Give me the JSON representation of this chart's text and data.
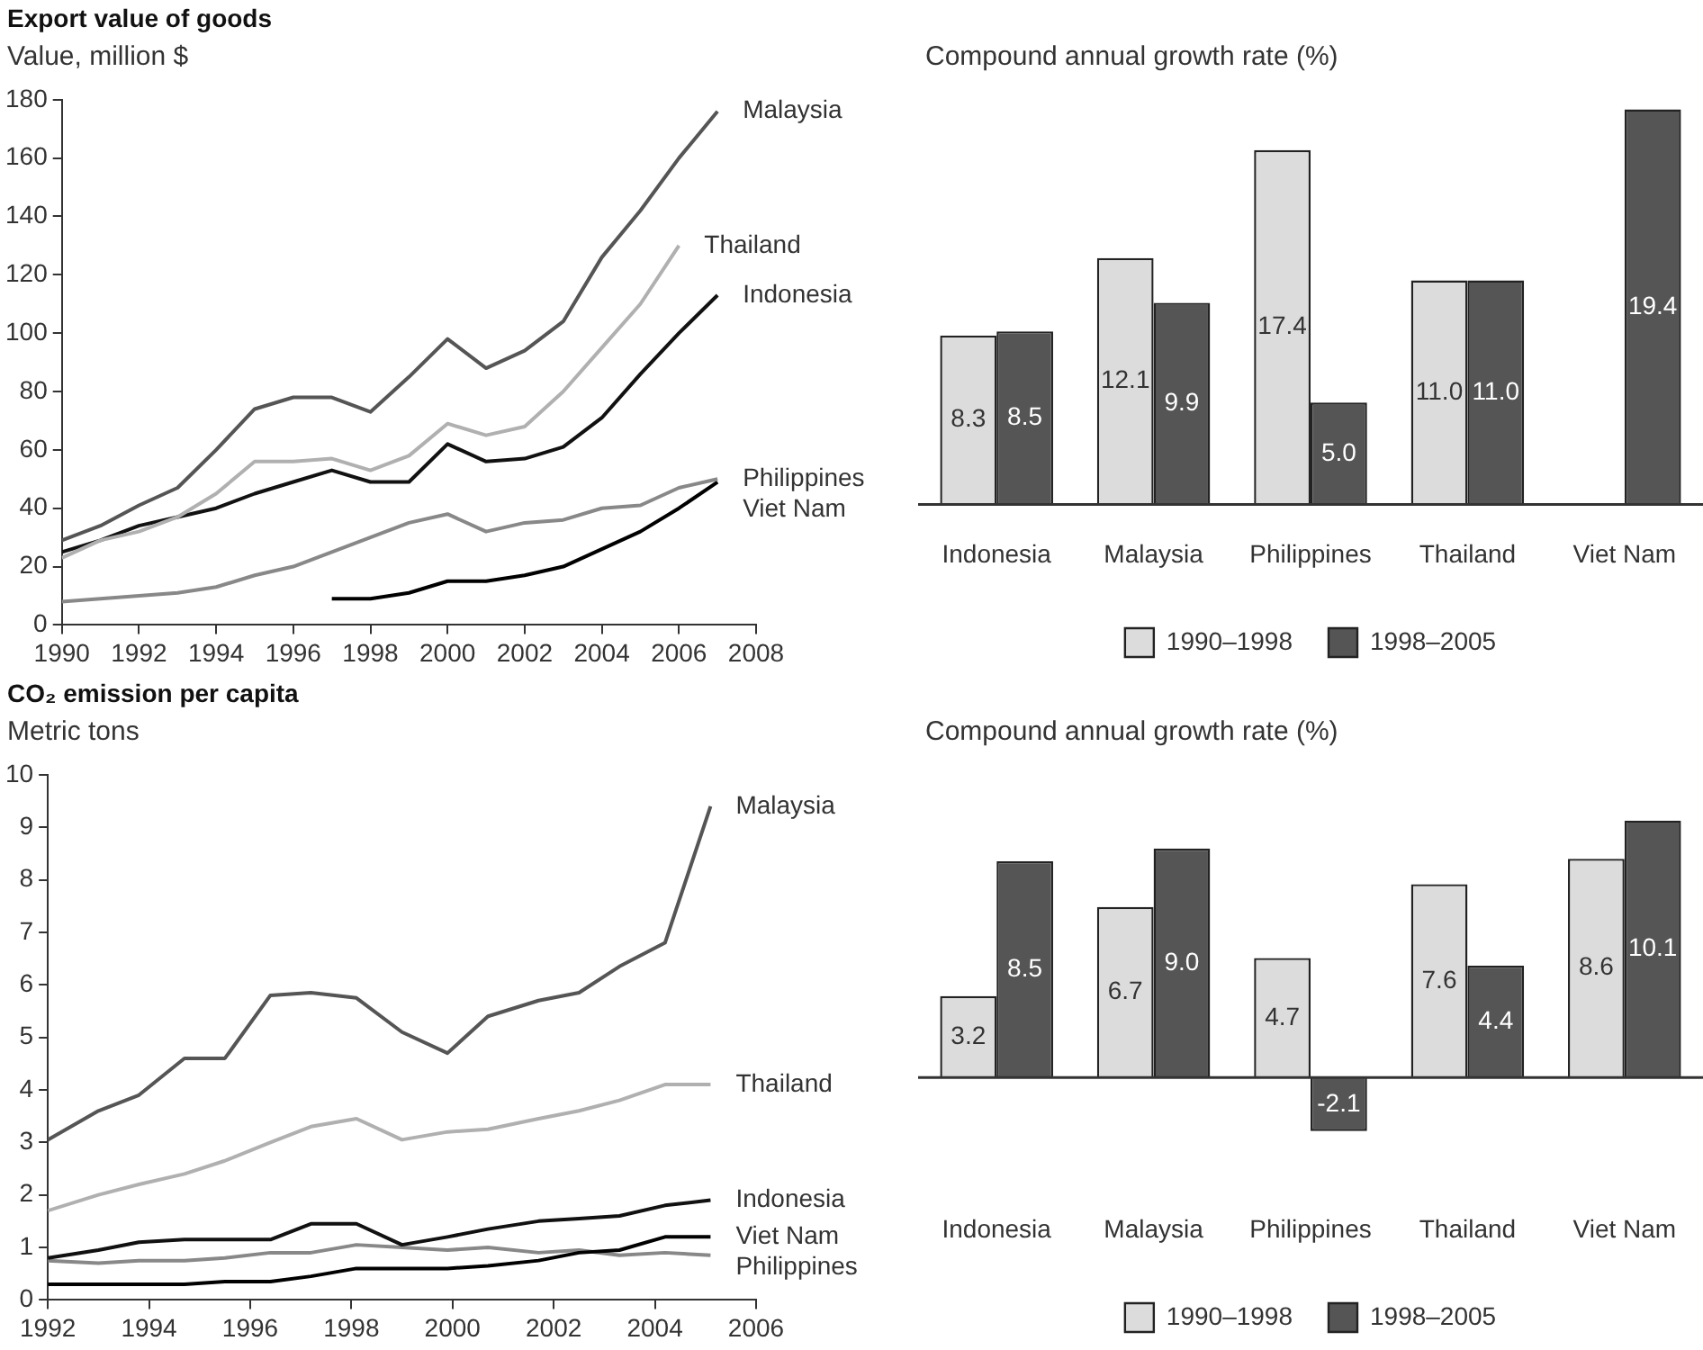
{
  "chart_data": [
    {
      "type": "line",
      "title": "Export value of goods",
      "ylabel": "Value, million $",
      "x": [
        1990,
        1991,
        1992,
        1993,
        1994,
        1995,
        1996,
        1997,
        1998,
        1999,
        2000,
        2001,
        2002,
        2003,
        2004,
        2005,
        2006,
        2007
      ],
      "xlim": [
        1990,
        2008
      ],
      "xticks": [
        1990,
        1992,
        1994,
        1996,
        1998,
        2000,
        2002,
        2004,
        2006,
        2008
      ],
      "ylim": [
        0,
        180
      ],
      "yticks": [
        0,
        20,
        40,
        60,
        80,
        100,
        120,
        140,
        160,
        180
      ],
      "legend": false,
      "grid": false,
      "series": [
        {
          "name": "Malaysia",
          "color": "#555555",
          "values": [
            29,
            34,
            41,
            47,
            60,
            74,
            78,
            78,
            73,
            85,
            98,
            88,
            94,
            104,
            126,
            142,
            160,
            176
          ]
        },
        {
          "name": "Thailand",
          "color": "#b0b0b0",
          "values": [
            23,
            29,
            32,
            37,
            45,
            56,
            56,
            57,
            53,
            58,
            69,
            65,
            68,
            80,
            95,
            110,
            130,
            null
          ]
        },
        {
          "name": "Indonesia",
          "color": "#111111",
          "values": [
            25,
            29,
            34,
            37,
            40,
            45,
            49,
            53,
            49,
            49,
            62,
            56,
            57,
            61,
            71,
            86,
            100,
            113
          ]
        },
        {
          "name": "Philippines",
          "color": "#888888",
          "values": [
            8,
            9,
            10,
            11,
            13,
            17,
            20,
            25,
            30,
            35,
            38,
            32,
            35,
            36,
            40,
            41,
            47,
            50
          ]
        },
        {
          "name": "Viet Nam",
          "color": "#000000",
          "values": [
            null,
            null,
            null,
            null,
            null,
            null,
            null,
            9,
            9,
            11,
            15,
            15,
            17,
            20,
            26,
            32,
            40,
            49
          ]
        }
      ]
    },
    {
      "type": "bar",
      "ylabel": "Compound annual growth rate (%)",
      "categories": [
        "Indonesia",
        "Malaysia",
        "Philippines",
        "Thailand",
        "Viet Nam"
      ],
      "legend": "bottom",
      "series": [
        {
          "name": "1990–1998",
          "color": "#dcdcdc",
          "values": [
            8.3,
            12.1,
            17.4,
            11.0,
            null
          ],
          "value_labels": [
            "8.3",
            "12.1",
            "17.4",
            "11.0",
            null
          ]
        },
        {
          "name": "1998–2005",
          "color": "#555555",
          "values": [
            8.5,
            9.9,
            5.0,
            11.0,
            19.4
          ],
          "value_labels": [
            "8.5",
            "9.9",
            "5.0",
            "11.0",
            "19.4"
          ]
        }
      ]
    },
    {
      "type": "line",
      "title": "CO₂ emission per capita",
      "ylabel": "Metric tons",
      "x": [
        1992,
        1993,
        1993.8,
        1994.7,
        1995.5,
        1996.4,
        1997.2,
        1998.1,
        1999,
        1999.9,
        2000.7,
        2001.7,
        2002.5,
        2003.3,
        2004.2,
        2005.1
      ],
      "xlim": [
        1992,
        2006
      ],
      "xticks": [
        1992,
        1994,
        1996,
        1998,
        2000,
        2002,
        2004,
        2006
      ],
      "ylim": [
        0,
        10
      ],
      "yticks": [
        0,
        1,
        2,
        3,
        4,
        5,
        6,
        7,
        8,
        9,
        10
      ],
      "legend": false,
      "grid": false,
      "series": [
        {
          "name": "Malaysia",
          "color": "#555555",
          "values": [
            3.05,
            3.6,
            3.9,
            4.6,
            4.6,
            5.8,
            5.85,
            5.75,
            5.1,
            4.7,
            5.4,
            5.7,
            5.85,
            6.35,
            6.8,
            9.4
          ]
        },
        {
          "name": "Thailand",
          "color": "#b0b0b0",
          "values": [
            1.7,
            2.0,
            2.2,
            2.4,
            2.65,
            3.0,
            3.3,
            3.45,
            3.05,
            3.2,
            3.25,
            3.45,
            3.6,
            3.8,
            4.1,
            4.1
          ]
        },
        {
          "name": "Indonesia",
          "color": "#111111",
          "values": [
            0.8,
            0.95,
            1.1,
            1.15,
            1.15,
            1.15,
            1.45,
            1.45,
            1.05,
            1.2,
            1.35,
            1.5,
            1.55,
            1.6,
            1.8,
            1.9
          ]
        },
        {
          "name": "Viet Nam",
          "color": "#000000",
          "values": [
            0.3,
            0.3,
            0.3,
            0.3,
            0.35,
            0.35,
            0.45,
            0.6,
            0.6,
            0.6,
            0.65,
            0.75,
            0.9,
            0.95,
            1.2,
            1.2
          ]
        },
        {
          "name": "Philippines",
          "color": "#888888",
          "values": [
            0.75,
            0.7,
            0.75,
            0.75,
            0.8,
            0.9,
            0.9,
            1.05,
            1.0,
            0.95,
            1.0,
            0.9,
            0.95,
            0.85,
            0.9,
            0.85
          ]
        }
      ]
    },
    {
      "type": "bar",
      "ylabel": "Compound annual growth rate (%)",
      "categories": [
        "Indonesia",
        "Malaysia",
        "Philippines",
        "Thailand",
        "Viet Nam"
      ],
      "legend": "bottom",
      "series": [
        {
          "name": "1990–1998",
          "color": "#dcdcdc",
          "values": [
            3.2,
            6.7,
            4.7,
            7.6,
            8.6
          ],
          "value_labels": [
            "3.2",
            "6.7",
            "4.7",
            "7.6",
            "8.6"
          ]
        },
        {
          "name": "1998–2005",
          "color": "#555555",
          "values": [
            8.5,
            9.0,
            -2.1,
            4.4,
            10.1
          ],
          "value_labels": [
            "8.5",
            "9.0",
            "-2.1",
            "4.4",
            "10.1"
          ]
        }
      ]
    }
  ]
}
